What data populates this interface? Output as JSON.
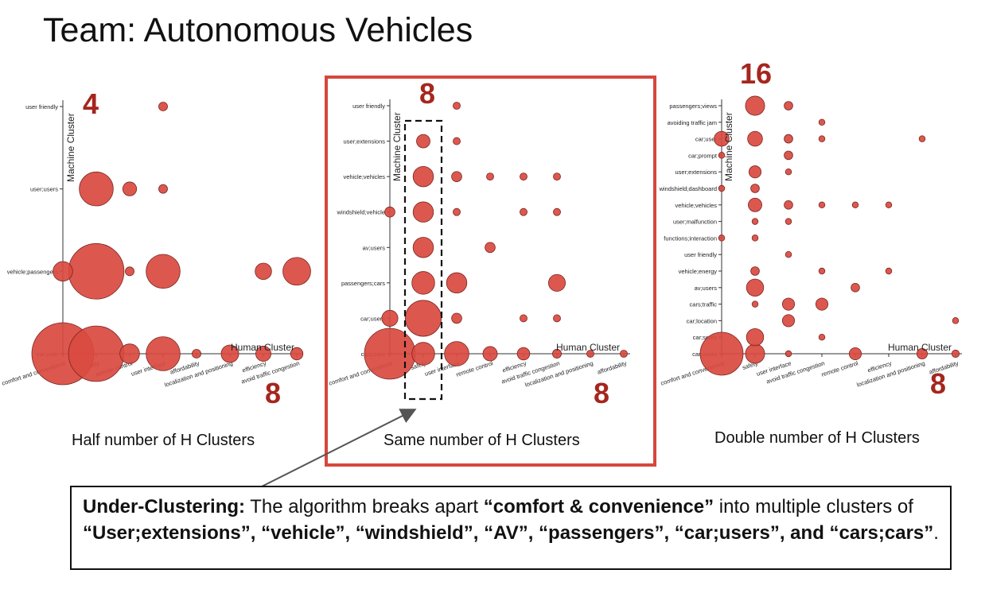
{
  "page_title": "Team: Autonomous Vehicles",
  "colors": {
    "bubble": "#d94a40",
    "bubble_stroke": "#7a2520",
    "count": "#a5261f",
    "frame": "#d6473c"
  },
  "captions": {
    "left": "Half number of H Clusters",
    "middle": "Same number of H Clusters",
    "right": "Double number of H Clusters"
  },
  "note": {
    "p1": "Under-Clustering:",
    "p2": " The algorithm breaks apart ",
    "p3": "“comfort & convenience”",
    "p4": " into multiple clusters of ",
    "p5": "“User;extensions”, “vehicle”, “windshield”, “AV”, “passengers”, “car;users”, and “cars;cars”",
    "p6": "."
  },
  "chart_data": [
    {
      "type": "scatter",
      "xlabel": "Human Cluster",
      "ylabel": "Machine Cluster",
      "machine_count": "4",
      "human_count": "8",
      "x_categories": [
        "comfort and convenience",
        "safety",
        "remote control",
        "user interface",
        "affordability",
        "localization and positioning",
        "efficiency",
        "avoid traffic congestion"
      ],
      "y_categories": [
        "car;user",
        "vehicle;passengers",
        "user;users",
        "user friendly"
      ],
      "points": [
        {
          "x": 0,
          "y": 0,
          "size": 10
        },
        {
          "x": 1,
          "y": 0,
          "size": 8
        },
        {
          "x": 2,
          "y": 0,
          "size": 1
        },
        {
          "x": 3,
          "y": 0,
          "size": 3
        },
        {
          "x": 4,
          "y": 0,
          "size": 0.2
        },
        {
          "x": 5,
          "y": 0,
          "size": 0.8
        },
        {
          "x": 6,
          "y": 0,
          "size": 0.6
        },
        {
          "x": 7,
          "y": 0,
          "size": 0.4
        },
        {
          "x": 0,
          "y": 1,
          "size": 1
        },
        {
          "x": 1,
          "y": 1,
          "size": 8
        },
        {
          "x": 2,
          "y": 1,
          "size": 0.2
        },
        {
          "x": 3,
          "y": 1,
          "size": 3
        },
        {
          "x": 6,
          "y": 1,
          "size": 0.7
        },
        {
          "x": 7,
          "y": 1,
          "size": 2
        },
        {
          "x": 1,
          "y": 2,
          "size": 3
        },
        {
          "x": 2,
          "y": 2,
          "size": 0.5
        },
        {
          "x": 3,
          "y": 2,
          "size": 0.2
        },
        {
          "x": 3,
          "y": 3,
          "size": 0.2
        }
      ]
    },
    {
      "type": "scatter",
      "xlabel": "Human Cluster",
      "ylabel": "Machine Cluster",
      "machine_count": "8",
      "human_count": "8",
      "x_categories": [
        "comfort and convenience",
        "safety",
        "user interface",
        "remote control",
        "efficiency",
        "avoid traffic congestion",
        "localization and positioning",
        "affordability"
      ],
      "y_categories": [
        "cars;cars",
        "car;users",
        "passengers;cars",
        "av;users",
        "windshield;vehicle",
        "vehicle;vehicles",
        "user;extensions",
        "user friendly"
      ],
      "points": [
        {
          "x": 0,
          "y": 0,
          "size": 10
        },
        {
          "x": 1,
          "y": 0,
          "size": 2
        },
        {
          "x": 2,
          "y": 0,
          "size": 2.3
        },
        {
          "x": 3,
          "y": 0,
          "size": 0.8
        },
        {
          "x": 4,
          "y": 0,
          "size": 0.6
        },
        {
          "x": 5,
          "y": 0,
          "size": 0.3
        },
        {
          "x": 6,
          "y": 0,
          "size": 0.2
        },
        {
          "x": 7,
          "y": 0,
          "size": 0.2
        },
        {
          "x": 0,
          "y": 1,
          "size": 1
        },
        {
          "x": 1,
          "y": 1,
          "size": 5
        },
        {
          "x": 2,
          "y": 1,
          "size": 0.4
        },
        {
          "x": 4,
          "y": 1,
          "size": 0.2
        },
        {
          "x": 5,
          "y": 1,
          "size": 0.2
        },
        {
          "x": 1,
          "y": 2,
          "size": 2
        },
        {
          "x": 2,
          "y": 2,
          "size": 1.6
        },
        {
          "x": 5,
          "y": 2,
          "size": 1.1
        },
        {
          "x": 1,
          "y": 3,
          "size": 1.6
        },
        {
          "x": 3,
          "y": 3,
          "size": 0.4
        },
        {
          "x": 0,
          "y": 4,
          "size": 0.4
        },
        {
          "x": 1,
          "y": 4,
          "size": 1.6
        },
        {
          "x": 2,
          "y": 4,
          "size": 0.2
        },
        {
          "x": 4,
          "y": 4,
          "size": 0.2
        },
        {
          "x": 5,
          "y": 4,
          "size": 0.2
        },
        {
          "x": 1,
          "y": 5,
          "size": 1.6
        },
        {
          "x": 2,
          "y": 5,
          "size": 0.4
        },
        {
          "x": 3,
          "y": 5,
          "size": 0.2
        },
        {
          "x": 4,
          "y": 5,
          "size": 0.2
        },
        {
          "x": 5,
          "y": 5,
          "size": 0.2
        },
        {
          "x": 1,
          "y": 6,
          "size": 0.7
        },
        {
          "x": 2,
          "y": 6,
          "size": 0.2
        },
        {
          "x": 2,
          "y": 7,
          "size": 0.2
        }
      ]
    },
    {
      "type": "scatter",
      "xlabel": "Human Cluster",
      "ylabel": "Machine Cluster",
      "machine_count": "16",
      "human_count": "8",
      "x_categories": [
        "comfort and convenience",
        "safety",
        "user interface",
        "avoid traffic congestion",
        "remote control",
        "efficiency",
        "localization and positioning",
        "affordability"
      ],
      "y_categories": [
        "car;users",
        "car;seats",
        "car;location",
        "cars;traffic",
        "av;users",
        "vehicle;energy",
        "user friendly",
        "functions;interaction",
        "user;malfunction",
        "vehicle;vehicles",
        "windshield;dashboard",
        "user;extensions",
        "car;prompt",
        "car;user",
        "avoiding traffic jam",
        "passengers;views"
      ],
      "points": [
        {
          "x": 0,
          "y": 0,
          "size": 10
        },
        {
          "x": 1,
          "y": 0,
          "size": 2
        },
        {
          "x": 2,
          "y": 0,
          "size": 0.2
        },
        {
          "x": 4,
          "y": 0,
          "size": 0.8
        },
        {
          "x": 6,
          "y": 0,
          "size": 0.6
        },
        {
          "x": 7,
          "y": 0,
          "size": 0.3
        },
        {
          "x": 1,
          "y": 1,
          "size": 1.6
        },
        {
          "x": 3,
          "y": 1,
          "size": 0.2
        },
        {
          "x": 2,
          "y": 2,
          "size": 0.8
        },
        {
          "x": 7,
          "y": 2,
          "size": 0.2
        },
        {
          "x": 1,
          "y": 3,
          "size": 0.2
        },
        {
          "x": 2,
          "y": 3,
          "size": 0.8
        },
        {
          "x": 3,
          "y": 3,
          "size": 0.8
        },
        {
          "x": 1,
          "y": 4,
          "size": 1.6
        },
        {
          "x": 4,
          "y": 4,
          "size": 0.4
        },
        {
          "x": 1,
          "y": 5,
          "size": 0.4
        },
        {
          "x": 3,
          "y": 5,
          "size": 0.2
        },
        {
          "x": 5,
          "y": 5,
          "size": 0.2
        },
        {
          "x": 2,
          "y": 6,
          "size": 0.2
        },
        {
          "x": 0,
          "y": 7,
          "size": 0.2
        },
        {
          "x": 1,
          "y": 7,
          "size": 0.2
        },
        {
          "x": 1,
          "y": 8,
          "size": 0.2
        },
        {
          "x": 2,
          "y": 8,
          "size": 0.2
        },
        {
          "x": 1,
          "y": 9,
          "size": 1
        },
        {
          "x": 2,
          "y": 9,
          "size": 0.4
        },
        {
          "x": 3,
          "y": 9,
          "size": 0.2
        },
        {
          "x": 4,
          "y": 9,
          "size": 0.2
        },
        {
          "x": 5,
          "y": 9,
          "size": 0.2
        },
        {
          "x": 0,
          "y": 10,
          "size": 0.2
        },
        {
          "x": 1,
          "y": 10,
          "size": 0.4
        },
        {
          "x": 1,
          "y": 11,
          "size": 0.8
        },
        {
          "x": 2,
          "y": 11,
          "size": 0.2
        },
        {
          "x": 0,
          "y": 12,
          "size": 0.2
        },
        {
          "x": 2,
          "y": 12,
          "size": 0.4
        },
        {
          "x": 0,
          "y": 13,
          "size": 1.2
        },
        {
          "x": 1,
          "y": 13,
          "size": 1.2
        },
        {
          "x": 2,
          "y": 13,
          "size": 0.4
        },
        {
          "x": 3,
          "y": 13,
          "size": 0.2
        },
        {
          "x": 6,
          "y": 13,
          "size": 0.2
        },
        {
          "x": 3,
          "y": 14,
          "size": 0.2
        },
        {
          "x": 1,
          "y": 15,
          "size": 2
        },
        {
          "x": 2,
          "y": 15,
          "size": 0.4
        }
      ]
    }
  ]
}
